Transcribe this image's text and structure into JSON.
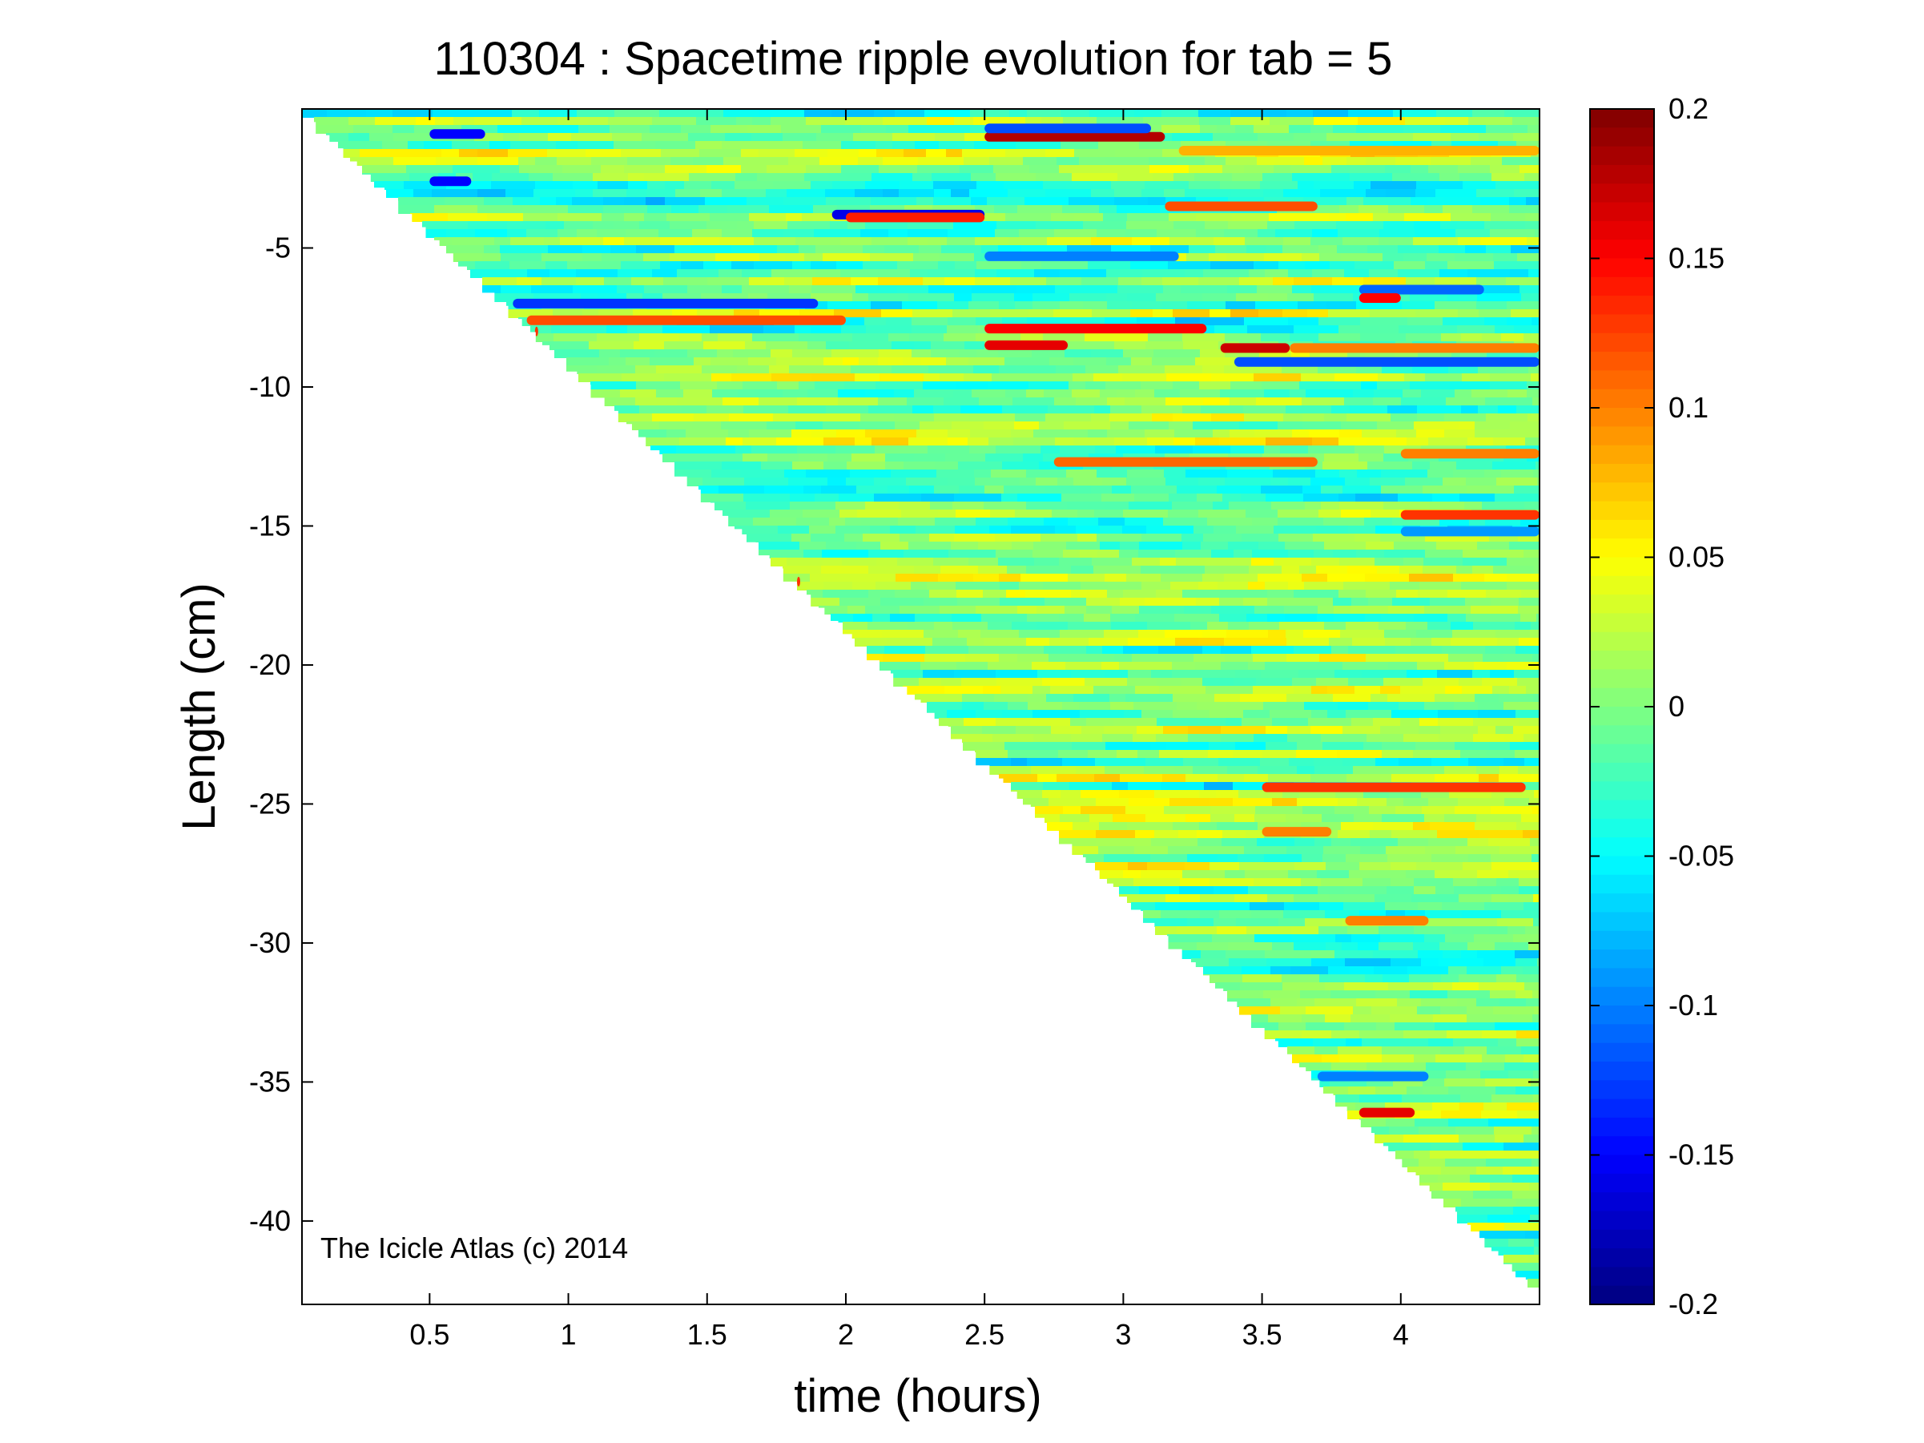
{
  "chart_data": {
    "type": "heatmap",
    "title": "110304 : Spacetime ripple evolution for tab = 5",
    "xlabel": "time (hours)",
    "ylabel": "Length (cm)",
    "xlim": [
      0.04,
      4.5
    ],
    "ylim": [
      -43,
      0
    ],
    "x_ticks": [
      0.5,
      1,
      1.5,
      2,
      2.5,
      3,
      3.5,
      4
    ],
    "x_tick_labels": [
      "0.5",
      "1",
      "1.5",
      "2",
      "2.5",
      "3",
      "3.5",
      "4"
    ],
    "y_ticks": [
      -5,
      -10,
      -15,
      -20,
      -25,
      -30,
      -35,
      -40
    ],
    "y_tick_labels": [
      "-5",
      "-10",
      "-15",
      "-20",
      "-25",
      "-30",
      "-35",
      "-40"
    ],
    "colorbar": {
      "colormap": "jet",
      "range": [
        -0.2,
        0.2
      ],
      "ticks": [
        0.2,
        0.15,
        0.1,
        0.05,
        0,
        -0.05,
        -0.1,
        -0.15,
        -0.2
      ],
      "tick_labels": [
        "0.2",
        "0.15",
        "0.1",
        "0.05",
        "0",
        "-0.05",
        "-0.1",
        "-0.15",
        "-0.2"
      ]
    },
    "front": {
      "x": [
        0.04,
        4.5
      ],
      "y": [
        0,
        -42.5
      ]
    },
    "features": [
      {
        "x": [
          2.5,
          3.15
        ],
        "y": -1.0,
        "value": 0.18
      },
      {
        "x": [
          2.5,
          3.1
        ],
        "y": -0.7,
        "value": -0.12
      },
      {
        "x": [
          3.15,
          3.7
        ],
        "y": -3.5,
        "value": 0.12
      },
      {
        "x": [
          1.95,
          2.5
        ],
        "y": -3.8,
        "value": -0.16
      },
      {
        "x": [
          2.0,
          2.5
        ],
        "y": -3.9,
        "value": 0.14
      },
      {
        "x": [
          3.2,
          4.5
        ],
        "y": -1.5,
        "value": 0.08
      },
      {
        "x": [
          0.8,
          1.9
        ],
        "y": -7.0,
        "value": -0.13
      },
      {
        "x": [
          0.85,
          2.0
        ],
        "y": -7.6,
        "value": 0.12
      },
      {
        "x": [
          2.5,
          3.3
        ],
        "y": -7.9,
        "value": 0.15
      },
      {
        "x": [
          2.5,
          2.8
        ],
        "y": -8.5,
        "value": 0.16
      },
      {
        "x": [
          3.35,
          3.6
        ],
        "y": -8.6,
        "value": 0.17
      },
      {
        "x": [
          3.4,
          4.5
        ],
        "y": -9.1,
        "value": -0.12
      },
      {
        "x": [
          3.6,
          4.5
        ],
        "y": -8.6,
        "value": 0.1
      },
      {
        "x": [
          3.85,
          4.3
        ],
        "y": -6.5,
        "value": -0.11
      },
      {
        "x": [
          3.85,
          4.0
        ],
        "y": -6.8,
        "value": 0.15
      },
      {
        "x": [
          2.5,
          3.2
        ],
        "y": -5.3,
        "value": -0.1
      },
      {
        "x": [
          2.75,
          3.7
        ],
        "y": -12.7,
        "value": 0.11
      },
      {
        "x": [
          4.0,
          4.5
        ],
        "y": -14.6,
        "value": 0.13
      },
      {
        "x": [
          4.0,
          4.5
        ],
        "y": -12.4,
        "value": 0.1
      },
      {
        "x": [
          3.5,
          4.45
        ],
        "y": -24.4,
        "value": 0.13
      },
      {
        "x": [
          3.5,
          3.75
        ],
        "y": -26.0,
        "value": 0.1
      },
      {
        "x": [
          3.85,
          4.05
        ],
        "y": -36.1,
        "value": 0.16
      },
      {
        "x": [
          3.8,
          4.1
        ],
        "y": -29.2,
        "value": 0.1
      },
      {
        "x": [
          0.5,
          0.65
        ],
        "y": -2.6,
        "value": -0.15
      },
      {
        "x": [
          0.5,
          0.7
        ],
        "y": -0.9,
        "value": -0.15
      },
      {
        "x": [
          1.6,
          1.65
        ],
        "y": -17.0,
        "value": 0.13
      },
      {
        "x": [
          0.7,
          0.75
        ],
        "y": -8.0,
        "value": 0.13
      },
      {
        "x": [
          4.0,
          4.5
        ],
        "y": -15.2,
        "value": -0.09
      },
      {
        "x": [
          3.7,
          4.1
        ],
        "y": -34.8,
        "value": -0.1
      }
    ]
  },
  "annotations": {
    "credit": "The Icicle Atlas (c) 2014"
  }
}
